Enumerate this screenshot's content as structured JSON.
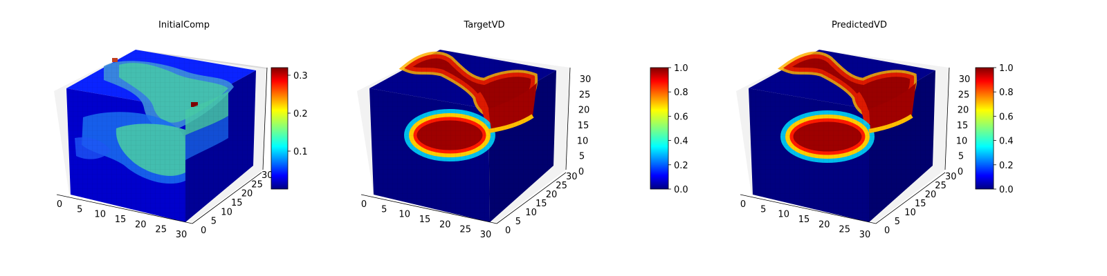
{
  "chart_data": [
    {
      "type": "heatmap",
      "title": "InitialComp",
      "x_ticks": [
        "0",
        "5",
        "10",
        "15",
        "20",
        "25",
        "30"
      ],
      "y_ticks": [
        "0",
        "5",
        "10",
        "15",
        "20",
        "25",
        "30"
      ],
      "z_ticks": [],
      "colorbar": {
        "colormap": "jet",
        "min": 0.0,
        "max": 0.32,
        "ticks": [
          "0.1",
          "0.2",
          "0.3"
        ]
      },
      "colormap_colors": [
        "#000080",
        "#0000ff",
        "#0080ff",
        "#00ffff",
        "#80ff80",
        "#ffff00",
        "#ff8000",
        "#ff0000",
        "#800000"
      ]
    },
    {
      "type": "heatmap",
      "title": "TargetVD",
      "x_ticks": [
        "0",
        "5",
        "10",
        "15",
        "20",
        "25",
        "30"
      ],
      "y_ticks": [
        "0",
        "5",
        "10",
        "15",
        "20",
        "25",
        "30"
      ],
      "z_ticks": [
        "0",
        "5",
        "10",
        "15",
        "20",
        "25",
        "30"
      ],
      "colorbar": {
        "colormap": "jet",
        "min": 0.0,
        "max": 1.0,
        "ticks": [
          "0.0",
          "0.2",
          "0.4",
          "0.6",
          "0.8",
          "1.0"
        ]
      }
    },
    {
      "type": "heatmap",
      "title": "PredictedVD",
      "x_ticks": [
        "0",
        "5",
        "10",
        "15",
        "20",
        "25",
        "30"
      ],
      "y_ticks": [
        "0",
        "5",
        "10",
        "15",
        "20",
        "25",
        "30"
      ],
      "z_ticks": [
        "0",
        "5",
        "10",
        "15",
        "20",
        "25",
        "30"
      ],
      "colorbar": {
        "colormap": "jet",
        "min": 0.0,
        "max": 1.0,
        "ticks": [
          "0.0",
          "0.2",
          "0.4",
          "0.6",
          "0.8",
          "1.0"
        ]
      }
    }
  ]
}
